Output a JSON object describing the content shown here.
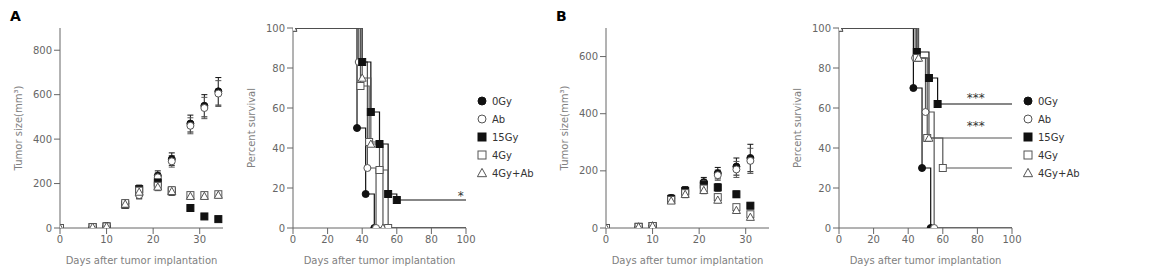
{
  "chart_data": [
    {
      "type": "scatter",
      "title": "A",
      "xlabel": "Days after tumor implantation",
      "ylabel": "Tumor size(mm³)",
      "xlim": [
        0,
        35
      ],
      "ylim": [
        0,
        900
      ],
      "xticks": [
        0,
        10,
        20,
        30
      ],
      "yticks": [
        0,
        200,
        400,
        600,
        800
      ],
      "x": [
        0,
        7,
        10,
        14,
        17,
        21,
        24,
        28,
        31,
        34
      ],
      "series": [
        {
          "name": "0Gy",
          "color": "#111111",
          "marker": "circle",
          "values": [
            0,
            4,
            8,
            110,
            150,
            235,
            310,
            470,
            550,
            615
          ],
          "yerr": [
            0,
            1,
            2,
            12,
            18,
            22,
            28,
            38,
            50,
            62
          ]
        },
        {
          "name": "Ab",
          "color": "#555555",
          "marker": "circle-open",
          "values": [
            0,
            4,
            8,
            108,
            148,
            228,
            300,
            460,
            540,
            605
          ],
          "yerr": [
            0,
            1,
            2,
            11,
            17,
            20,
            26,
            36,
            48,
            58
          ]
        },
        {
          "name": "15Gy",
          "color": "#111111",
          "marker": "square",
          "values": [
            0,
            4,
            7,
            105,
            175,
            205,
            165,
            90,
            52,
            40
          ],
          "yerr": [
            0,
            1,
            2,
            14,
            18,
            20,
            17,
            14,
            10,
            8
          ]
        },
        {
          "name": "4Gy",
          "color": "#555555",
          "marker": "square-open",
          "values": [
            0,
            4,
            7,
            112,
            168,
            190,
            170,
            148,
            148,
            152
          ],
          "yerr": [
            0,
            1,
            2,
            14,
            17,
            18,
            15,
            12,
            12,
            12
          ]
        },
        {
          "name": "4Gy+Ab",
          "color": "#555555",
          "marker": "triangle-open",
          "values": [
            0,
            4,
            7,
            108,
            162,
            185,
            165,
            143,
            143,
            148
          ],
          "yerr": [
            0,
            1,
            2,
            13,
            16,
            17,
            14,
            11,
            11,
            11
          ]
        }
      ]
    },
    {
      "type": "line",
      "xlabel": "Days after tumor implantation",
      "ylabel": "Percent survival",
      "xlim": [
        0,
        100
      ],
      "ylim": [
        0,
        100
      ],
      "xticks": [
        0,
        20,
        40,
        60,
        80,
        100
      ],
      "yticks": [
        0,
        20,
        40,
        60,
        80,
        100
      ],
      "legend": "right",
      "annotations": [
        {
          "text": "*",
          "x": 97,
          "y": 16
        }
      ],
      "series": [
        {
          "name": "0Gy",
          "color": "#111111",
          "marker": "circle",
          "x": [
            0,
            37,
            37,
            42,
            42,
            47,
            47,
            100
          ],
          "values": [
            100,
            100,
            50,
            50,
            17,
            17,
            0,
            0
          ]
        },
        {
          "name": "Ab",
          "color": "#555555",
          "marker": "circle-open",
          "x": [
            0,
            38,
            38,
            43,
            43,
            48,
            48,
            100
          ],
          "values": [
            100,
            100,
            83,
            83,
            30,
            30,
            0,
            0
          ]
        },
        {
          "name": "15Gy",
          "color": "#111111",
          "marker": "square",
          "x": [
            0,
            40,
            40,
            45,
            45,
            50,
            50,
            55,
            55,
            60,
            60,
            100
          ],
          "values": [
            100,
            100,
            83,
            83,
            58,
            58,
            42,
            42,
            17,
            17,
            14,
            14
          ]
        },
        {
          "name": "4Gy",
          "color": "#555555",
          "marker": "square-open",
          "x": [
            0,
            39,
            39,
            44,
            44,
            50,
            50,
            55,
            55,
            100
          ],
          "values": [
            100,
            100,
            71,
            71,
            43,
            43,
            29,
            29,
            0,
            0
          ]
        },
        {
          "name": "4Gy+Ab",
          "color": "#555555",
          "marker": "triangle-open",
          "x": [
            0,
            40,
            40,
            45,
            45,
            52,
            52,
            100
          ],
          "values": [
            100,
            100,
            75,
            75,
            42,
            42,
            0,
            0
          ]
        }
      ]
    },
    {
      "type": "scatter",
      "title": "B",
      "xlabel": "Days after tumor implantation",
      "ylabel": "Tumor size(mm³)",
      "xlim": [
        0,
        35
      ],
      "ylim": [
        0,
        700
      ],
      "xticks": [
        0,
        10,
        20,
        30
      ],
      "yticks": [
        0,
        200,
        400,
        600
      ],
      "x": [
        0,
        7,
        10,
        14,
        17,
        21,
        24,
        28,
        31
      ],
      "series": [
        {
          "name": "0Gy",
          "color": "#111111",
          "marker": "circle",
          "values": [
            0,
            4,
            8,
            105,
            130,
            160,
            192,
            215,
            245
          ],
          "yerr": [
            0,
            1,
            2,
            11,
            14,
            17,
            20,
            30,
            48
          ]
        },
        {
          "name": "Ab",
          "color": "#555555",
          "marker": "circle-open",
          "values": [
            0,
            4,
            8,
            102,
            128,
            155,
            185,
            205,
            235
          ],
          "yerr": [
            0,
            1,
            2,
            10,
            13,
            16,
            18,
            28,
            44
          ]
        },
        {
          "name": "15Gy",
          "color": "#111111",
          "marker": "square",
          "values": [
            0,
            4,
            7,
            102,
            130,
            152,
            142,
            118,
            78
          ],
          "yerr": [
            0,
            1,
            2,
            11,
            14,
            14,
            13,
            11,
            9
          ]
        },
        {
          "name": "4Gy",
          "color": "#555555",
          "marker": "square-open",
          "values": [
            0,
            4,
            7,
            98,
            122,
            138,
            108,
            73,
            48
          ],
          "yerr": [
            0,
            1,
            2,
            10,
            13,
            13,
            11,
            9,
            7
          ]
        },
        {
          "name": "4Gy+Ab",
          "color": "#555555",
          "marker": "triangle-open",
          "values": [
            0,
            4,
            7,
            95,
            118,
            132,
            98,
            62,
            38
          ],
          "yerr": [
            0,
            1,
            2,
            9,
            12,
            12,
            10,
            8,
            6
          ]
        }
      ]
    },
    {
      "type": "line",
      "xlabel": "Days after tumor implantation",
      "ylabel": "Percent survival",
      "xlim": [
        0,
        100
      ],
      "ylim": [
        0,
        100
      ],
      "xticks": [
        0,
        20,
        40,
        60,
        80,
        100
      ],
      "yticks": [
        0,
        20,
        40,
        60,
        80,
        100
      ],
      "legend": "right",
      "annotations": [
        {
          "text": "***",
          "x": 79,
          "y": 65
        },
        {
          "text": "***",
          "x": 79,
          "y": 51
        }
      ],
      "series": [
        {
          "name": "0Gy",
          "color": "#111111",
          "marker": "circle",
          "x": [
            0,
            43,
            43,
            48,
            48,
            53,
            53,
            100
          ],
          "values": [
            100,
            100,
            70,
            70,
            30,
            30,
            0,
            0
          ]
        },
        {
          "name": "Ab",
          "color": "#555555",
          "marker": "circle-open",
          "x": [
            0,
            44,
            44,
            50,
            50,
            55,
            55,
            100
          ],
          "values": [
            100,
            100,
            85,
            85,
            58,
            58,
            0,
            0
          ]
        },
        {
          "name": "15Gy",
          "color": "#111111",
          "marker": "square",
          "x": [
            0,
            45,
            45,
            52,
            52,
            57,
            57,
            100
          ],
          "values": [
            100,
            100,
            88,
            88,
            75,
            75,
            62,
            62
          ]
        },
        {
          "name": "4Gy",
          "color": "#555555",
          "marker": "square-open",
          "x": [
            0,
            45,
            45,
            51,
            51,
            60,
            60,
            100
          ],
          "values": [
            100,
            100,
            85,
            85,
            45,
            45,
            30,
            30
          ]
        },
        {
          "name": "4Gy+Ab",
          "color": "#555555",
          "marker": "triangle-open",
          "x": [
            0,
            46,
            46,
            52,
            52,
            62,
            62,
            100
          ],
          "values": [
            100,
            100,
            85,
            85,
            45,
            45,
            45,
            45
          ]
        }
      ]
    }
  ]
}
